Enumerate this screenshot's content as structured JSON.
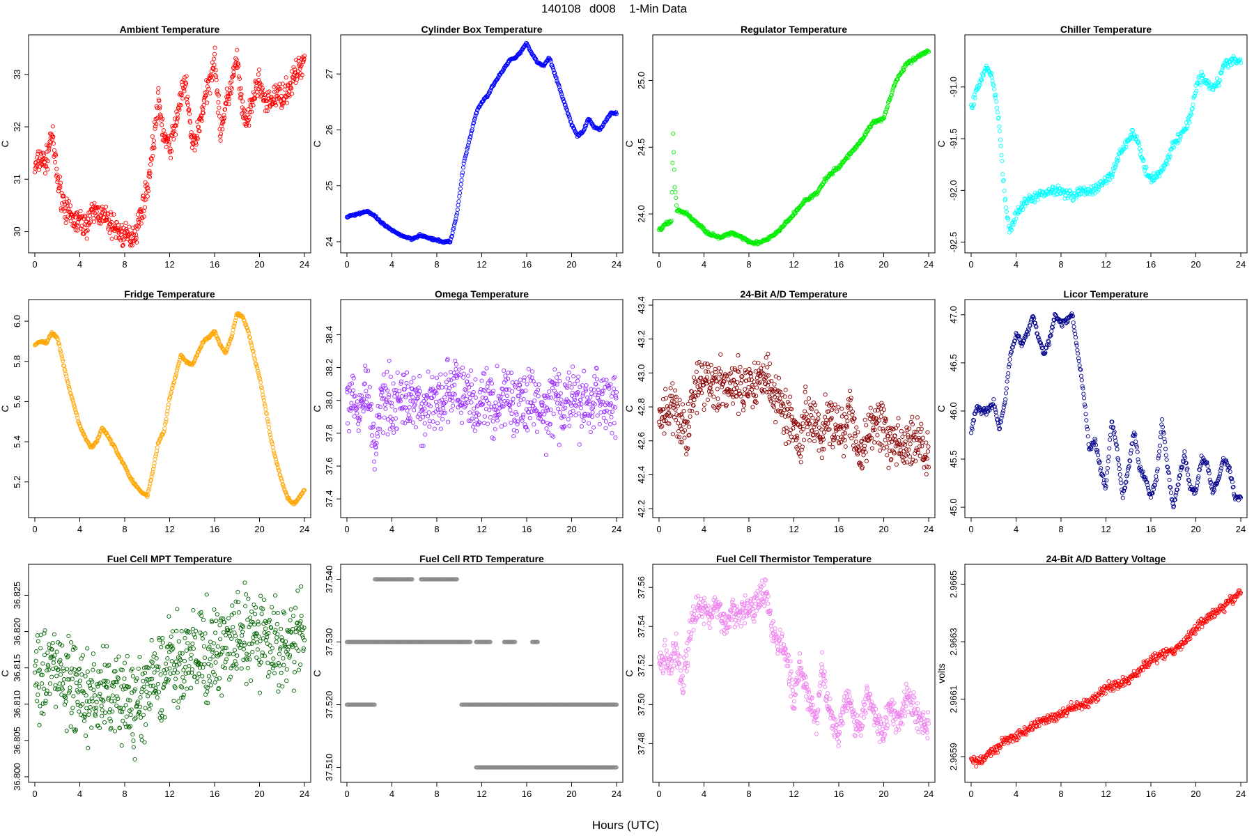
{
  "figure": {
    "title_parts": [
      "140108",
      "d008",
      "1-Min Data"
    ],
    "xlabel": "Hours (UTC)"
  },
  "chart_data": [
    {
      "type": "scatter",
      "title": "Ambient Temperature",
      "ylabel": "C",
      "color": "#ff0000",
      "xlim": [
        0,
        24
      ],
      "ylim": [
        29.7,
        33.65
      ],
      "xticks": [
        0,
        4,
        8,
        12,
        16,
        20,
        24
      ],
      "yticks": [
        30,
        31,
        32,
        33
      ],
      "ytick_labels": [
        "30",
        "31",
        "32",
        "33"
      ],
      "x": [
        0,
        0.5,
        1,
        1.5,
        2,
        2.5,
        3,
        3.5,
        4,
        4.5,
        5,
        5.5,
        6,
        6.5,
        7,
        7.5,
        8,
        8.5,
        9,
        9.5,
        10,
        10.5,
        11,
        11.5,
        12,
        12.5,
        13,
        13.5,
        14,
        14.5,
        15,
        15.5,
        16,
        16.5,
        17,
        17.5,
        18,
        18.5,
        19,
        19.5,
        20,
        20.5,
        21,
        21.5,
        22,
        22.5,
        23,
        23.5,
        24
      ],
      "y": [
        31.2,
        31.4,
        31.3,
        31.9,
        31.0,
        30.6,
        30.3,
        30.2,
        30.2,
        30.1,
        30.3,
        30.4,
        30.3,
        30.2,
        30.1,
        30.0,
        29.9,
        29.9,
        30.0,
        30.4,
        30.8,
        31.6,
        32.5,
        31.8,
        31.6,
        32.0,
        32.6,
        32.8,
        31.6,
        31.9,
        32.4,
        32.8,
        33.4,
        31.9,
        32.4,
        32.8,
        33.3,
        32.2,
        32.1,
        32.6,
        32.9,
        32.4,
        32.5,
        32.6,
        32.6,
        32.7,
        32.9,
        33.1,
        33.3
      ],
      "spread": 0.35
    },
    {
      "type": "scatter",
      "title": "Cylinder Box Temperature",
      "ylabel": "C",
      "color": "#0000ff",
      "xlim": [
        0,
        24
      ],
      "ylim": [
        23.9,
        27.6
      ],
      "xticks": [
        0,
        4,
        8,
        12,
        16,
        20,
        24
      ],
      "yticks": [
        24,
        25,
        26,
        27
      ],
      "ytick_labels": [
        "24",
        "25",
        "26",
        "27"
      ],
      "x": [
        0,
        1,
        1.8,
        2.5,
        3,
        4,
        5,
        5.8,
        6.5,
        7.5,
        8.5,
        9.2,
        9.8,
        10.4,
        11,
        11.5,
        12,
        12.5,
        13,
        13.5,
        14,
        14.5,
        15,
        15.5,
        16,
        16.5,
        17,
        17.5,
        18,
        18.5,
        19,
        20,
        20.5,
        21,
        21.5,
        22,
        22.5,
        23,
        23.5,
        24
      ],
      "y": [
        24.45,
        24.5,
        24.55,
        24.45,
        24.35,
        24.2,
        24.1,
        24.05,
        24.12,
        24.05,
        24.0,
        24.0,
        24.5,
        25.4,
        25.9,
        26.3,
        26.5,
        26.6,
        26.8,
        26.95,
        27.1,
        27.25,
        27.3,
        27.4,
        27.55,
        27.35,
        27.2,
        27.15,
        27.3,
        27.0,
        26.7,
        26.1,
        25.9,
        25.95,
        26.2,
        26.05,
        26.0,
        26.15,
        26.3,
        26.3
      ],
      "spread": 0.03
    },
    {
      "type": "scatter",
      "title": "Regulator Temperature",
      "ylabel": "C",
      "color": "#00ee00",
      "xlim": [
        0,
        24
      ],
      "ylim": [
        23.75,
        25.3
      ],
      "xticks": [
        0,
        4,
        8,
        12,
        16,
        20,
        24
      ],
      "yticks": [
        24.0,
        24.5,
        25.0
      ],
      "ytick_labels": [
        "24.0",
        "24.5",
        "25.0"
      ],
      "x": [
        0,
        0.6,
        1.1,
        1.25,
        1.4,
        1.6,
        2.5,
        3.5,
        4.5,
        5.5,
        6.5,
        7.5,
        8.5,
        9.5,
        10.5,
        11.5,
        12,
        13,
        14,
        15,
        16,
        17,
        18,
        19,
        20,
        20.5,
        21,
        22,
        22.5,
        23,
        24
      ],
      "y": [
        23.88,
        23.92,
        23.95,
        24.6,
        24.2,
        24.03,
        24.0,
        23.92,
        23.85,
        23.82,
        23.86,
        23.82,
        23.78,
        23.8,
        23.86,
        23.95,
        24.0,
        24.1,
        24.15,
        24.28,
        24.35,
        24.45,
        24.55,
        24.68,
        24.72,
        24.85,
        24.98,
        25.12,
        25.15,
        25.18,
        25.22
      ],
      "spread": 0.02
    },
    {
      "type": "scatter",
      "title": "Chiller Temperature",
      "ylabel": "C",
      "color": "#00ffff",
      "xlim": [
        0,
        24
      ],
      "ylim": [
        -92.55,
        -90.55
      ],
      "xticks": [
        0,
        4,
        8,
        12,
        16,
        20,
        24
      ],
      "yticks": [
        -92.5,
        -92.0,
        -91.5,
        -91.0
      ],
      "ytick_labels": [
        "-92.5",
        "-92.0",
        "-91.5",
        "-91.0"
      ],
      "x": [
        0,
        0.6,
        1,
        1.4,
        1.8,
        2.2,
        2.6,
        3,
        3.4,
        3.8,
        4.2,
        5,
        6,
        7,
        8,
        9,
        10,
        11,
        12,
        12.5,
        13,
        13.5,
        14,
        14.5,
        15,
        15.5,
        16,
        16.5,
        17,
        17.5,
        18,
        18.5,
        19,
        19.5,
        20,
        20.5,
        21,
        21.5,
        22,
        22.5,
        23,
        23.5,
        24
      ],
      "y": [
        -91.2,
        -91.0,
        -90.9,
        -90.8,
        -90.9,
        -91.1,
        -91.5,
        -92.1,
        -92.4,
        -92.3,
        -92.2,
        -92.1,
        -92.05,
        -92.0,
        -92.0,
        -92.05,
        -92.0,
        -92.0,
        -91.9,
        -91.85,
        -91.7,
        -91.6,
        -91.5,
        -91.45,
        -91.6,
        -91.8,
        -91.9,
        -91.85,
        -91.8,
        -91.7,
        -91.55,
        -91.5,
        -91.4,
        -91.3,
        -91.0,
        -90.9,
        -90.95,
        -91.0,
        -90.95,
        -90.8,
        -90.75,
        -90.75,
        -90.75
      ],
      "spread": 0.07
    },
    {
      "type": "scatter",
      "title": "Fridge Temperature",
      "ylabel": "C",
      "color": "#ffa500",
      "xlim": [
        0,
        24
      ],
      "ylim": [
        5.05,
        6.08
      ],
      "xticks": [
        0,
        4,
        8,
        12,
        16,
        20,
        24
      ],
      "yticks": [
        5.2,
        5.4,
        5.6,
        5.8,
        6.0
      ],
      "ytick_labels": [
        "5.2",
        "5.4",
        "5.6",
        "5.8",
        "6.0"
      ],
      "x": [
        0,
        0.5,
        1,
        1.5,
        2,
        2.5,
        3,
        3.5,
        4,
        4.5,
        5,
        5.5,
        6,
        6.5,
        7,
        7.5,
        8,
        8.5,
        9,
        9.5,
        10,
        10.5,
        11,
        11.5,
        12,
        12.5,
        13,
        13.5,
        14,
        14.5,
        15,
        15.5,
        16,
        16.5,
        17,
        17.5,
        18,
        18.5,
        19,
        19.5,
        20,
        20.5,
        21,
        21.5,
        22,
        22.5,
        23,
        23.5,
        24
      ],
      "y": [
        5.88,
        5.9,
        5.89,
        5.94,
        5.92,
        5.8,
        5.68,
        5.58,
        5.48,
        5.42,
        5.37,
        5.4,
        5.47,
        5.43,
        5.38,
        5.33,
        5.28,
        5.22,
        5.18,
        5.15,
        5.13,
        5.25,
        5.4,
        5.45,
        5.62,
        5.72,
        5.83,
        5.8,
        5.78,
        5.84,
        5.9,
        5.92,
        5.95,
        5.88,
        5.84,
        5.92,
        6.04,
        6.02,
        5.95,
        5.83,
        5.72,
        5.58,
        5.42,
        5.3,
        5.2,
        5.12,
        5.09,
        5.12,
        5.16
      ],
      "spread": 0.01
    },
    {
      "type": "scatter",
      "title": "Omega Temperature",
      "ylabel": "C",
      "color": "#9b30ff",
      "xlim": [
        0,
        24
      ],
      "ylim": [
        37.32,
        38.58
      ],
      "xticks": [
        0,
        4,
        8,
        12,
        16,
        20,
        24
      ],
      "yticks": [
        37.4,
        37.6,
        37.8,
        38.0,
        38.2,
        38.4
      ],
      "ytick_labels": [
        "37.4",
        "37.6",
        "37.8",
        "38.0",
        "38.2",
        "38.4"
      ],
      "x": [
        0,
        0.6,
        1.2,
        1.8,
        2.2,
        2.6,
        3,
        3.6,
        4.2,
        4.8,
        5.4,
        6,
        6.6,
        7.2,
        7.8,
        8.4,
        9,
        9.6,
        10.2,
        10.8,
        11.4,
        12,
        12.6,
        13.2,
        13.8,
        14.4,
        15,
        15.6,
        16.2,
        16.8,
        17.4,
        18,
        18.6,
        19.2,
        19.8,
        20.4,
        21,
        21.6,
        22.2,
        22.8,
        23.4,
        24
      ],
      "y": [
        38.0,
        38.05,
        37.95,
        38.1,
        37.8,
        37.75,
        38.0,
        38.05,
        37.95,
        38.05,
        37.95,
        38.05,
        37.9,
        38.0,
        38.0,
        37.95,
        38.05,
        38.1,
        38.0,
        38.05,
        37.95,
        38.0,
        38.0,
        37.95,
        38.0,
        38.05,
        37.95,
        38.0,
        38.0,
        38.0,
        37.9,
        37.95,
        38.05,
        37.9,
        38.05,
        37.95,
        38.0,
        37.95,
        38.05,
        38.0,
        38.0,
        38.0
      ],
      "spread": 0.28
    },
    {
      "type": "scatter",
      "title": "24-Bit A/D Temperature",
      "ylabel": "C",
      "color": "#8b0000",
      "xlim": [
        0,
        24
      ],
      "ylim": [
        42.18,
        43.4
      ],
      "xticks": [
        0,
        4,
        8,
        12,
        16,
        20,
        24
      ],
      "yticks": [
        42.2,
        42.4,
        42.6,
        42.8,
        43.0,
        43.2,
        43.4
      ],
      "ytick_labels": [
        "42.2",
        "42.4",
        "42.6",
        "42.8",
        "43.0",
        "43.2",
        "43.4"
      ],
      "x": [
        0,
        1,
        2,
        2.5,
        3,
        4,
        5,
        6,
        7,
        8,
        9,
        9.5,
        10,
        11,
        12,
        12.5,
        13,
        14,
        14.5,
        15,
        16,
        16.5,
        17,
        17.5,
        18,
        19,
        20,
        20.5,
        21,
        22,
        22.5,
        23,
        23.5,
        24
      ],
      "y": [
        42.75,
        42.8,
        42.7,
        42.65,
        42.9,
        42.95,
        42.95,
        42.9,
        42.92,
        42.95,
        42.95,
        43.05,
        42.9,
        42.8,
        42.7,
        42.6,
        42.75,
        42.75,
        42.6,
        42.75,
        42.65,
        42.6,
        42.8,
        42.6,
        42.5,
        42.7,
        42.7,
        42.55,
        42.6,
        42.55,
        42.6,
        42.65,
        42.55,
        42.5
      ],
      "spread": 0.22
    },
    {
      "type": "scatter",
      "title": "Licor Temperature",
      "ylabel": "C",
      "color": "#00008b",
      "xlim": [
        0,
        24
      ],
      "ylim": [
        44.95,
        47.1
      ],
      "xticks": [
        0,
        4,
        8,
        12,
        16,
        20,
        24
      ],
      "yticks": [
        45.0,
        45.5,
        46.0,
        46.5,
        47.0
      ],
      "ytick_labels": [
        "45.0",
        "45.5",
        "46.0",
        "46.5",
        "47.0"
      ],
      "x": [
        0,
        0.5,
        1,
        1.5,
        2,
        2.5,
        3,
        3.5,
        4,
        4.5,
        5,
        5.5,
        6,
        6.5,
        7,
        7.5,
        8,
        8.5,
        9,
        9.5,
        10,
        10.5,
        11,
        11.5,
        12,
        12.5,
        13,
        13.5,
        14,
        14.5,
        15,
        15.5,
        16,
        16.5,
        17,
        17.5,
        18,
        18.5,
        19,
        19.5,
        20,
        20.5,
        21,
        21.5,
        22,
        22.5,
        23,
        23.5,
        24
      ],
      "y": [
        45.8,
        46.05,
        46.0,
        46.0,
        46.1,
        45.8,
        46.1,
        46.6,
        46.8,
        46.7,
        46.8,
        47.0,
        46.75,
        46.6,
        46.75,
        47.0,
        46.9,
        46.95,
        47.0,
        46.6,
        46.2,
        45.6,
        45.7,
        45.4,
        45.2,
        45.9,
        45.6,
        45.1,
        45.4,
        45.8,
        45.4,
        45.3,
        45.1,
        45.3,
        45.9,
        45.4,
        45.0,
        45.3,
        45.55,
        45.2,
        45.15,
        45.5,
        45.45,
        45.15,
        45.3,
        45.5,
        45.4,
        45.1,
        45.1
      ],
      "spread": 0.05
    },
    {
      "type": "scatter",
      "title": "Fuel Cell MPT Temperature",
      "ylabel": "C",
      "color": "#006400",
      "xlim": [
        0,
        24
      ],
      "ylim": [
        36.8,
        36.8285
      ],
      "xticks": [
        0,
        4,
        8,
        12,
        16,
        20,
        24
      ],
      "yticks": [
        36.8,
        36.805,
        36.81,
        36.815,
        36.82,
        36.825
      ],
      "ytick_labels": [
        "36.800",
        "36.805",
        "36.810",
        "36.815",
        "36.820",
        "36.825"
      ],
      "x": [
        0,
        2,
        4,
        6,
        8,
        9,
        10,
        11,
        12,
        14,
        16,
        18,
        20,
        22,
        24
      ],
      "y": [
        36.815,
        36.815,
        36.811,
        36.811,
        36.811,
        36.809,
        36.812,
        36.813,
        36.816,
        36.816,
        36.817,
        36.819,
        36.819,
        36.818,
        36.819
      ],
      "spread": 0.009
    },
    {
      "type": "scatter",
      "title": "Fuel Cell RTD Temperature",
      "ylabel": "C",
      "color": "#888888",
      "xlim": [
        0,
        24
      ],
      "ylim": [
        37.5085,
        37.5415
      ],
      "xticks": [
        0,
        4,
        8,
        12,
        16,
        20,
        24
      ],
      "yticks": [
        37.51,
        37.52,
        37.53,
        37.54
      ],
      "ytick_labels": [
        "37.510",
        "37.520",
        "37.530",
        "37.540"
      ],
      "levels": [
        37.51,
        37.52,
        37.53,
        37.54
      ],
      "segments": [
        [
          37.52,
          0,
          2.5
        ],
        [
          37.53,
          0,
          11
        ],
        [
          37.54,
          2.5,
          5.8
        ],
        [
          37.54,
          6.6,
          9.8
        ],
        [
          37.53,
          11.5,
          12.8
        ],
        [
          37.53,
          14,
          15
        ],
        [
          37.53,
          16.5,
          17
        ],
        [
          37.52,
          10.2,
          24
        ],
        [
          37.51,
          11.5,
          24
        ]
      ]
    },
    {
      "type": "scatter",
      "title": "Fuel Cell Thermistor Temperature",
      "ylabel": "C",
      "color": "#ee82ee",
      "xlim": [
        0,
        24
      ],
      "ylim": [
        37.463,
        37.569
      ],
      "xticks": [
        0,
        4,
        8,
        12,
        16,
        20,
        24
      ],
      "yticks": [
        37.48,
        37.5,
        37.52,
        37.54,
        37.56
      ],
      "ytick_labels": [
        "37.48",
        "37.50",
        "37.52",
        "37.54",
        "37.56"
      ],
      "x": [
        0,
        0.5,
        1,
        1.5,
        2,
        2.5,
        3,
        3.5,
        4,
        4.5,
        5,
        5.5,
        6,
        6.5,
        7,
        7.5,
        8,
        8.5,
        9,
        9.5,
        10,
        10.5,
        11,
        11.5,
        12,
        12.5,
        13,
        13.5,
        14,
        14.5,
        15,
        15.5,
        16,
        16.5,
        17,
        17.5,
        18,
        18.5,
        19,
        19.5,
        20,
        20.5,
        21,
        21.5,
        22,
        22.5,
        23,
        23.5,
        24
      ],
      "y": [
        37.52,
        37.525,
        37.52,
        37.53,
        37.51,
        37.525,
        37.545,
        37.55,
        37.55,
        37.545,
        37.55,
        37.545,
        37.54,
        37.55,
        37.545,
        37.55,
        37.55,
        37.552,
        37.555,
        37.56,
        37.54,
        37.535,
        37.53,
        37.52,
        37.5,
        37.52,
        37.51,
        37.5,
        37.49,
        37.52,
        37.5,
        37.49,
        37.485,
        37.5,
        37.505,
        37.49,
        37.49,
        37.505,
        37.5,
        37.49,
        37.485,
        37.5,
        37.495,
        37.49,
        37.505,
        37.5,
        37.495,
        37.49,
        37.49
      ],
      "spread": 0.011
    },
    {
      "type": "scatter",
      "title": "24-Bit A/D Battery Voltage",
      "ylabel": "volts",
      "color": "#ff0000",
      "xlim": [
        0,
        24
      ],
      "ylim": [
        2.96583,
        2.96655
      ],
      "xticks": [
        0,
        4,
        8,
        12,
        16,
        20,
        24
      ],
      "yticks": [
        2.9659,
        2.9661,
        2.9663,
        2.9665
      ],
      "ytick_labels": [
        "2.9659",
        "2.9661",
        "2.9663",
        "2.9665"
      ],
      "x": [
        0,
        1,
        2,
        3,
        4,
        5,
        6,
        7,
        8,
        9,
        10,
        11,
        12,
        13,
        14,
        15,
        16,
        17,
        18,
        19,
        20,
        21,
        22,
        23,
        24
      ],
      "y": [
        2.96588,
        2.96589,
        2.96592,
        2.96596,
        2.96597,
        2.96599,
        2.96602,
        2.96603,
        2.96605,
        2.96607,
        2.96608,
        2.9661,
        2.96614,
        2.96615,
        2.96617,
        2.9662,
        2.96624,
        2.96625,
        2.96627,
        2.9663,
        2.96635,
        2.96638,
        2.96641,
        2.96644,
        2.96647
      ],
      "spread": 2.5e-05
    }
  ]
}
